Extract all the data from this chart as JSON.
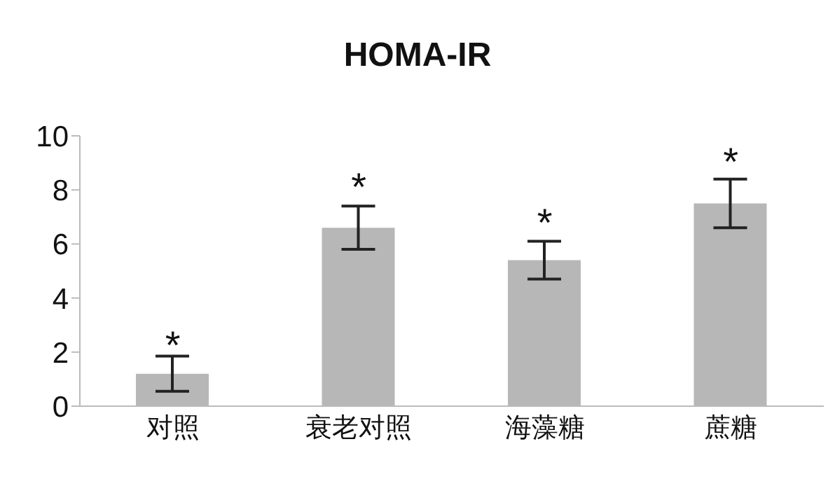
{
  "chart_data": {
    "type": "bar",
    "title": "HOMA-IR",
    "categories": [
      "对照",
      "衰老对照",
      "海藻糖",
      "蔗糖"
    ],
    "values": [
      1.2,
      6.6,
      5.4,
      7.5
    ],
    "errors": [
      0.65,
      0.8,
      0.7,
      0.9
    ],
    "color": "#b7b7b7",
    "ylim": [
      0,
      10
    ],
    "yticks": [
      0,
      2,
      4,
      6,
      8,
      10
    ],
    "grid": false,
    "legend": false,
    "annotations": [
      {
        "text": "*",
        "x": "对照",
        "y": 1.55
      },
      {
        "text": "*",
        "x": "衰老对照",
        "y": 7.4
      },
      {
        "text": "*",
        "x": "海藻糖",
        "y": 6.1
      },
      {
        "text": "*",
        "x": "蔗糖",
        "y": 8.35
      }
    ]
  }
}
